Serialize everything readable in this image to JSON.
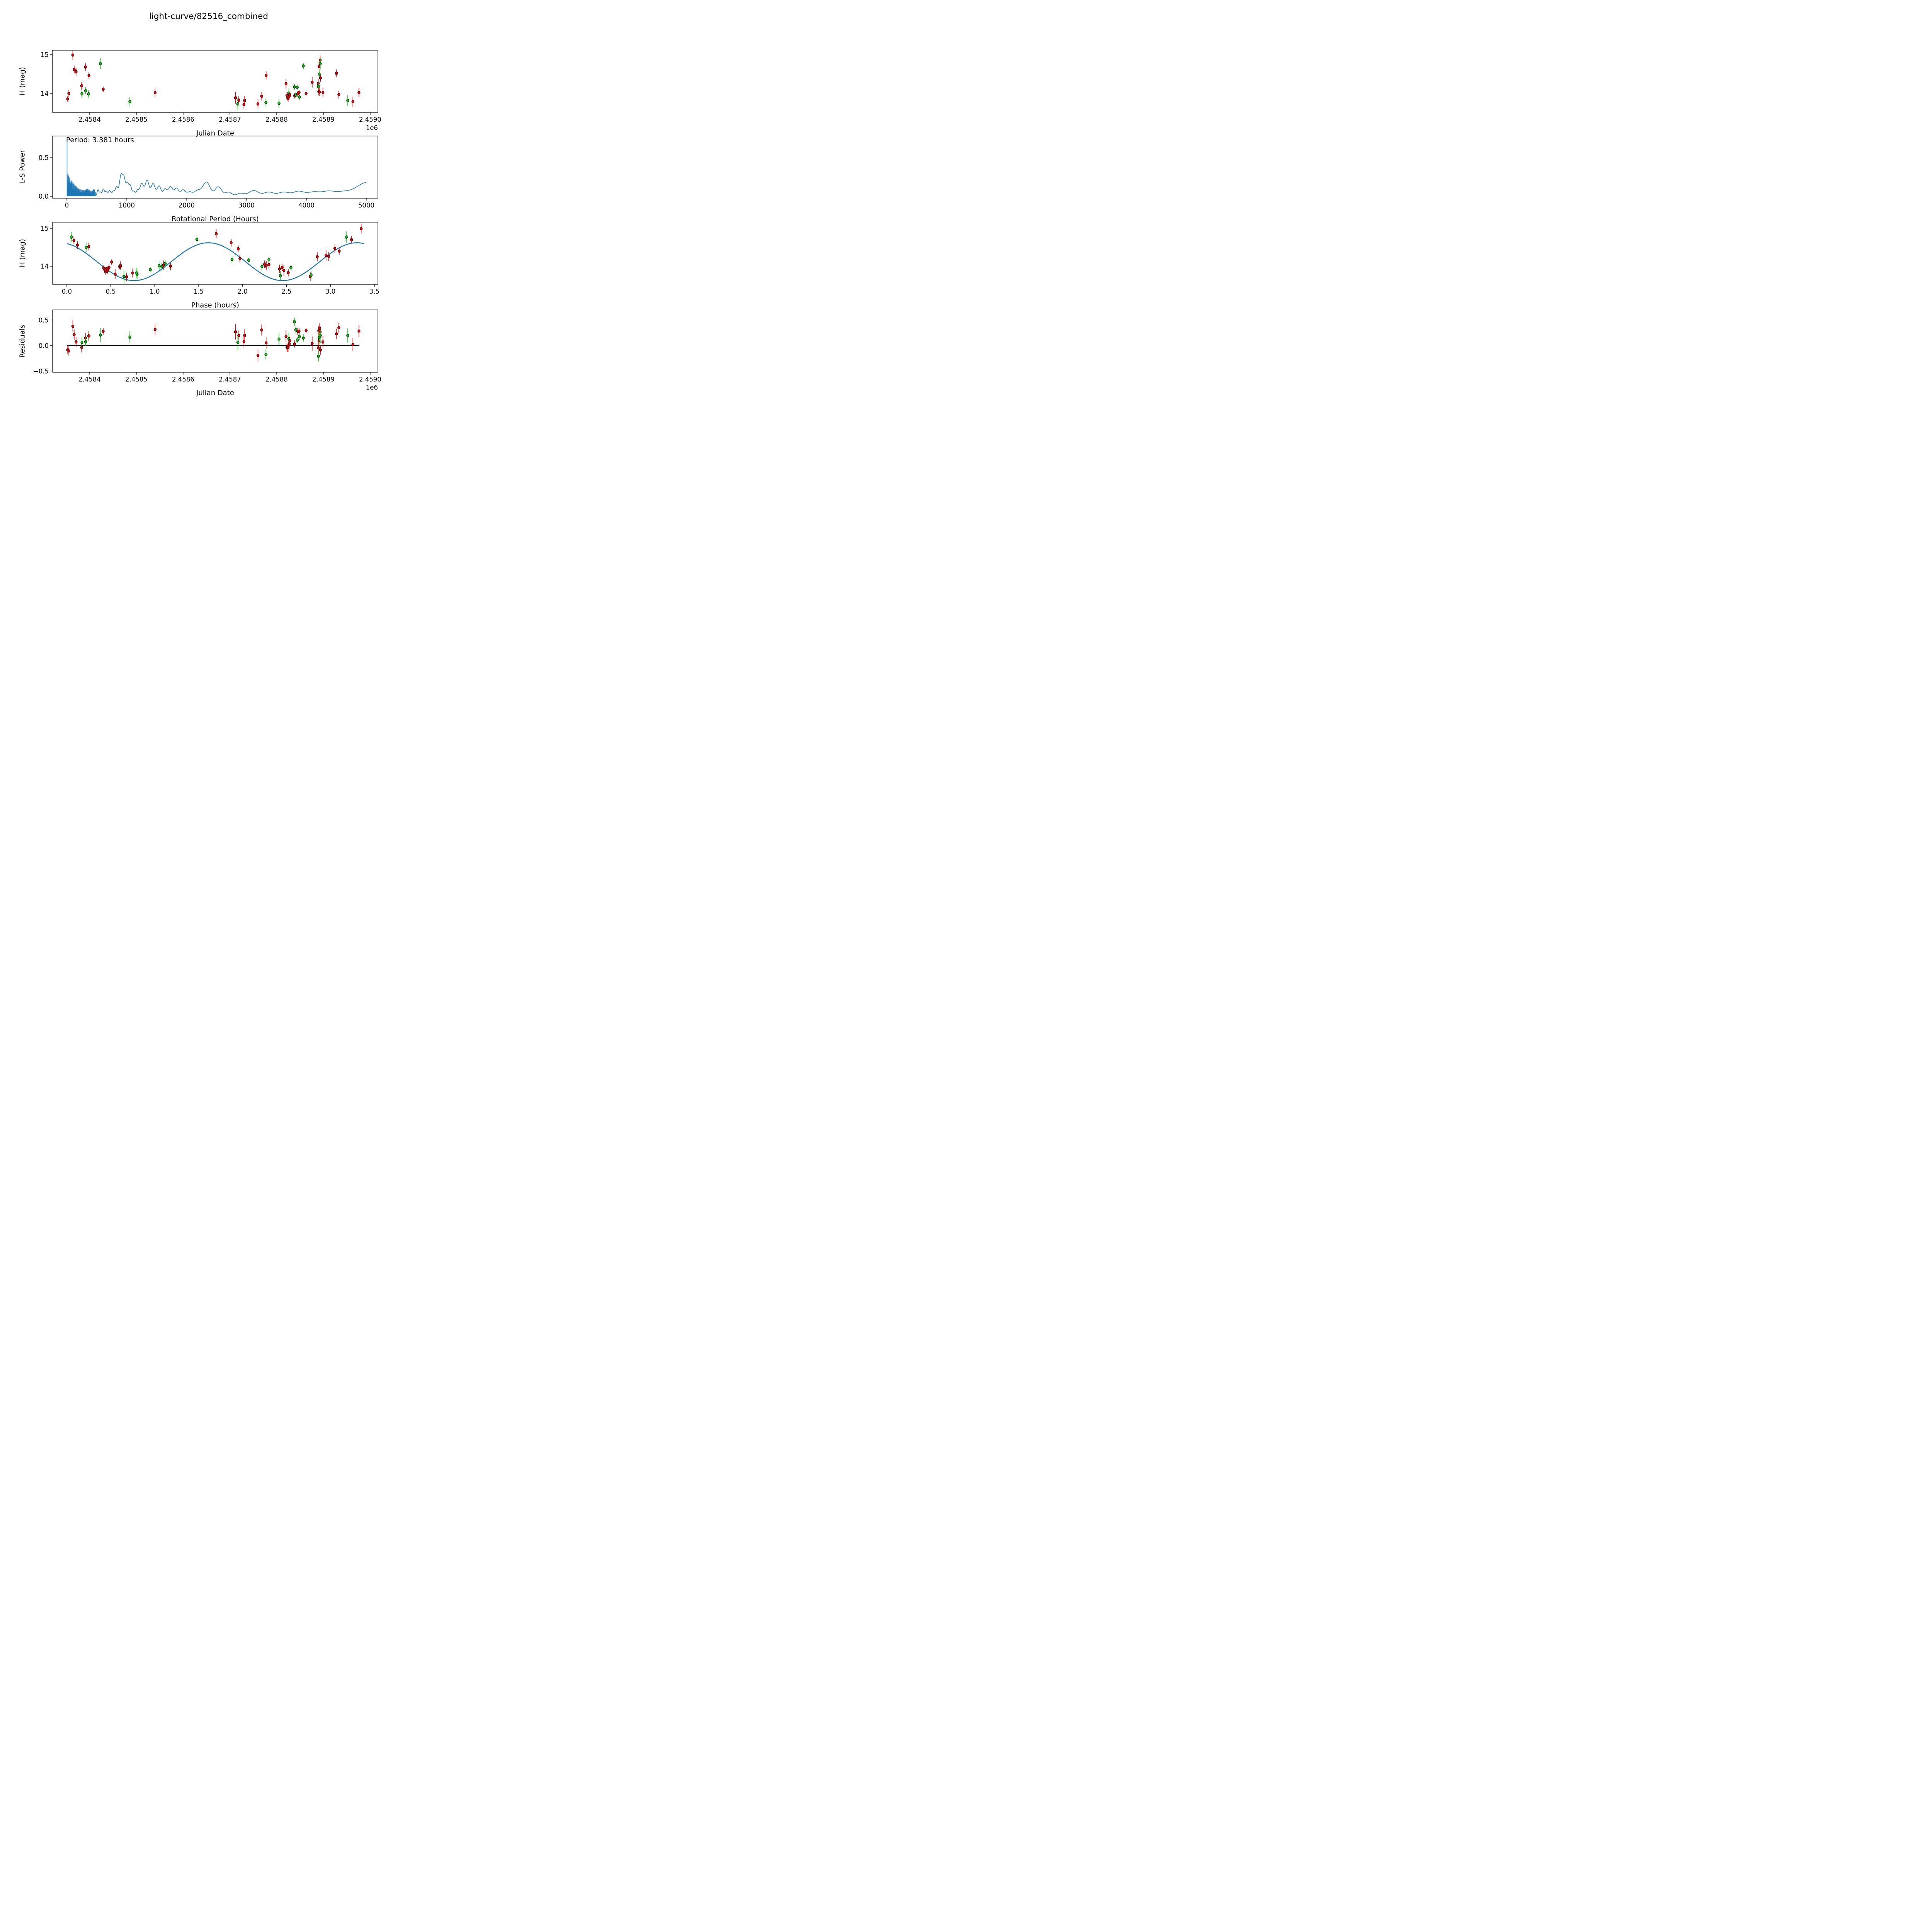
{
  "title": "light-curve/82516_combined",
  "colors": {
    "red": "#ee0000",
    "green": "#00cc00",
    "curve_blue": "#1f77b4",
    "axis_black": "#000000"
  },
  "chart_data": {
    "type": "scatter",
    "figure_kind": "asteroid light-curve analysis, 4 stacked subplots",
    "bands": {
      "r": "red",
      "g": "green"
    },
    "observations": {
      "fields": [
        "julian_date",
        "phase_hours",
        "h_mag",
        "err_mag",
        "band"
      ],
      "rows": [
        [
          2458353.0,
          0.44,
          13.86,
          0.08,
          "r"
        ],
        [
          2458355.5,
          1.18,
          14.0,
          0.1,
          "r"
        ],
        [
          2458364.0,
          3.35,
          14.99,
          0.12,
          "r"
        ],
        [
          2458367.0,
          1.87,
          14.62,
          0.1,
          "r"
        ],
        [
          2458371.0,
          0.12,
          14.56,
          0.1,
          "r"
        ],
        [
          2458383.0,
          1.97,
          14.2,
          0.1,
          "r"
        ],
        [
          2458383.5,
          1.08,
          13.99,
          0.1,
          "g"
        ],
        [
          2458391.0,
          0.08,
          14.68,
          0.1,
          "r"
        ],
        [
          2458391.5,
          1.12,
          14.07,
          0.09,
          "g"
        ],
        [
          2458398.0,
          2.22,
          13.99,
          0.1,
          "g"
        ],
        [
          2458398.5,
          1.95,
          14.46,
          0.09,
          "r"
        ],
        [
          2458423.0,
          0.05,
          14.77,
          0.14,
          "g"
        ],
        [
          2458429.0,
          0.51,
          14.11,
          0.07,
          "r"
        ],
        [
          2458486.0,
          0.8,
          13.79,
          0.12,
          "g"
        ],
        [
          2458540.0,
          0.61,
          14.02,
          0.11,
          "r"
        ],
        [
          2458712.0,
          2.47,
          13.89,
          0.15,
          "r"
        ],
        [
          2458717.0,
          0.65,
          13.73,
          0.16,
          "g"
        ],
        [
          2458719.0,
          2.52,
          13.83,
          0.1,
          "r"
        ],
        [
          2458730.0,
          0.68,
          13.72,
          0.11,
          "r"
        ],
        [
          2458731.5,
          0.75,
          13.82,
          0.12,
          "r"
        ],
        [
          2458760.0,
          2.77,
          13.73,
          0.12,
          "r"
        ],
        [
          2458768.0,
          2.42,
          13.93,
          0.11,
          "r"
        ],
        [
          2458777.0,
          2.78,
          13.77,
          0.1,
          "g"
        ],
        [
          2458777.5,
          3.05,
          14.47,
          0.11,
          "r"
        ],
        [
          2458805.0,
          2.43,
          13.75,
          0.12,
          "g"
        ],
        [
          2458820.0,
          2.85,
          14.25,
          0.12,
          "r"
        ],
        [
          2458826.0,
          1.05,
          14.01,
          0.12,
          "g"
        ],
        [
          2458822.0,
          0.42,
          13.95,
          0.08,
          "r"
        ],
        [
          2458823.0,
          0.44,
          13.9,
          0.08,
          "r"
        ],
        [
          2458824.5,
          0.46,
          13.87,
          0.08,
          "r"
        ],
        [
          2458827.0,
          0.47,
          13.93,
          0.08,
          "r"
        ],
        [
          2458828.0,
          0.48,
          13.97,
          0.08,
          "r"
        ],
        [
          2458838.0,
          2.3,
          14.17,
          0.08,
          "g"
        ],
        [
          2458844.0,
          2.07,
          14.16,
          0.06,
          "g"
        ],
        [
          2458838.5,
          0.46,
          13.94,
          0.07,
          "r"
        ],
        [
          2458841.0,
          2.55,
          13.96,
          0.07,
          "g"
        ],
        [
          2458845.0,
          0.6,
          13.99,
          0.07,
          "r"
        ],
        [
          2458848.0,
          2.26,
          14.03,
          0.07,
          "r"
        ],
        [
          2458848.5,
          0.95,
          13.91,
          0.07,
          "g"
        ],
        [
          2458857.0,
          1.48,
          14.71,
          0.08,
          "g"
        ],
        [
          2458863.0,
          0.61,
          14.0,
          0.05,
          "r"
        ],
        [
          2458876.0,
          2.95,
          14.29,
          0.14,
          "r"
        ],
        [
          2458889.0,
          2.98,
          14.26,
          0.12,
          "r"
        ],
        [
          2458889.3,
          1.88,
          14.18,
          0.1,
          "g"
        ],
        [
          2458890.0,
          2.25,
          14.05,
          0.1,
          "r"
        ],
        [
          2458893.0,
          1.7,
          14.86,
          0.12,
          "r"
        ],
        [
          2458893.3,
          3.18,
          14.77,
          0.15,
          "g"
        ],
        [
          2458890.5,
          3.24,
          14.7,
          0.1,
          "r"
        ],
        [
          2458891.0,
          0.22,
          14.5,
          0.12,
          "g"
        ],
        [
          2458893.6,
          3.1,
          14.4,
          0.1,
          "r"
        ],
        [
          2458892.0,
          2.3,
          14.04,
          0.1,
          "r"
        ],
        [
          2458899.0,
          1.1,
          14.03,
          0.12,
          "r"
        ],
        [
          2458928.0,
          0.25,
          14.52,
          0.1,
          "r"
        ],
        [
          2458933.0,
          2.45,
          13.97,
          0.1,
          "r"
        ],
        [
          2458952.0,
          0.79,
          13.82,
          0.14,
          "g"
        ],
        [
          2458963.0,
          0.55,
          13.79,
          0.13,
          "r"
        ],
        [
          2458976.0,
          2.27,
          14.02,
          0.12,
          "r"
        ]
      ]
    },
    "model_fit": {
      "rotation_period_hours": 3.381,
      "curve_period_hours": 1.6905,
      "mean_mag": 14.12,
      "amplitude_mag": 0.5,
      "phase_shift_hours": 0.08
    },
    "subplots": [
      {
        "id": "jd_vs_mag",
        "type": "scatter",
        "xlabel": "Julian Date",
        "ylabel": "H (mag)",
        "x_offset_text": "1e6",
        "xticks": {
          "values": [
            2458400,
            2458500,
            2458600,
            2458700,
            2458800,
            2458900,
            2459000
          ],
          "labels": [
            "2.4584",
            "2.4585",
            "2.4586",
            "2.4587",
            "2.4588",
            "2.4589",
            "2.4590"
          ]
        },
        "yticks": {
          "values": [
            15,
            14
          ],
          "labels": [
            "15",
            "14"
          ]
        },
        "xlim": [
          2458320.7,
          2459016.5
        ],
        "ylim": [
          13.51,
          15.13
        ]
      },
      {
        "id": "periodogram",
        "type": "line",
        "xlabel": "Rotational Period (Hours)",
        "ylabel": "L-S Power",
        "annotation": "Period: 3.381 hours",
        "xticks": {
          "values": [
            0,
            1000,
            2000,
            3000,
            4000,
            5000
          ],
          "labels": [
            "0",
            "1000",
            "2000",
            "3000",
            "4000",
            "5000"
          ]
        },
        "yticks": {
          "values": [
            0.5,
            0.0
          ],
          "labels": [
            "0.5",
            "0.0"
          ]
        },
        "xlim": [
          -238,
          5193
        ],
        "ylim": [
          -0.03,
          0.78
        ],
        "peak": {
          "best_period_hours": 3.381,
          "power": 0.72
        },
        "noise_region": {
          "start_hours": 5,
          "end_hours": 480,
          "peak_envelope": 0.3,
          "decay_hours": 170,
          "floor": 0.012,
          "bumps": [
            [
              350,
              0.05,
              40
            ],
            [
              450,
              0.06,
              25
            ]
          ]
        },
        "lobes": [
          [
            520,
            0.08,
            15
          ],
          [
            560,
            0.05,
            15
          ],
          [
            610,
            0.09,
            18
          ],
          [
            660,
            0.06,
            18
          ],
          [
            715,
            0.07,
            20
          ],
          [
            775,
            0.06,
            20
          ],
          [
            830,
            0.12,
            22
          ],
          [
            905,
            0.27,
            26
          ],
          [
            955,
            0.21,
            22
          ],
          [
            1010,
            0.16,
            22
          ],
          [
            1060,
            0.13,
            22
          ],
          [
            1120,
            0.06,
            20
          ],
          [
            1180,
            0.07,
            22
          ],
          [
            1250,
            0.16,
            30
          ],
          [
            1340,
            0.2,
            32
          ],
          [
            1440,
            0.16,
            32
          ],
          [
            1540,
            0.13,
            32
          ],
          [
            1640,
            0.09,
            30
          ],
          [
            1730,
            0.12,
            35
          ],
          [
            1830,
            0.1,
            35
          ],
          [
            1940,
            0.08,
            40
          ],
          [
            2050,
            0.05,
            40
          ],
          [
            2180,
            0.07,
            55
          ],
          [
            2330,
            0.18,
            60
          ],
          [
            2530,
            0.12,
            55
          ],
          [
            2700,
            0.05,
            50
          ],
          [
            2900,
            0.035,
            60
          ],
          [
            3120,
            0.07,
            80
          ],
          [
            3370,
            0.05,
            80
          ],
          [
            3620,
            0.05,
            90
          ],
          [
            3870,
            0.06,
            90
          ],
          [
            4120,
            0.05,
            100
          ],
          [
            4370,
            0.06,
            110
          ],
          [
            4620,
            0.05,
            110
          ],
          [
            4870,
            0.07,
            120
          ],
          [
            5100,
            0.17,
            160
          ]
        ]
      },
      {
        "id": "phase_vs_mag",
        "type": "scatter",
        "xlabel": "Phase (hours)",
        "ylabel": "H (mag)",
        "xticks": {
          "values": [
            0.0,
            0.5,
            1.0,
            1.5,
            2.0,
            2.5,
            3.0,
            3.5
          ],
          "labels": [
            "0.0",
            "0.5",
            "1.0",
            "1.5",
            "2.0",
            "2.5",
            "3.0",
            "3.5"
          ]
        },
        "yticks": {
          "values": [
            15,
            14
          ],
          "labels": [
            "15",
            "14"
          ]
        },
        "xlim": [
          -0.16,
          3.54
        ],
        "ylim": [
          13.52,
          15.14
        ],
        "fit_curve_range_hours": [
          0.0,
          3.381
        ]
      },
      {
        "id": "jd_vs_residuals",
        "type": "scatter",
        "xlabel": "Julian Date",
        "ylabel": "Residuals",
        "x_offset_text": "1e6",
        "xticks": {
          "values": [
            2458400,
            2458500,
            2458600,
            2458700,
            2458800,
            2458900,
            2459000
          ],
          "labels": [
            "2.4584",
            "2.4585",
            "2.4586",
            "2.4587",
            "2.4588",
            "2.4589",
            "2.4590"
          ]
        },
        "yticks": {
          "values": [
            0.5,
            0.0,
            -0.5
          ],
          "labels": [
            "0.5",
            "0.0",
            "−0.5"
          ]
        },
        "xlim": [
          2458320.7,
          2459016.5
        ],
        "ylim": [
          -0.52,
          0.7
        ],
        "zero_line": {
          "x_start": 2458352,
          "x_end": 2458977,
          "y": 0.0
        }
      }
    ]
  }
}
